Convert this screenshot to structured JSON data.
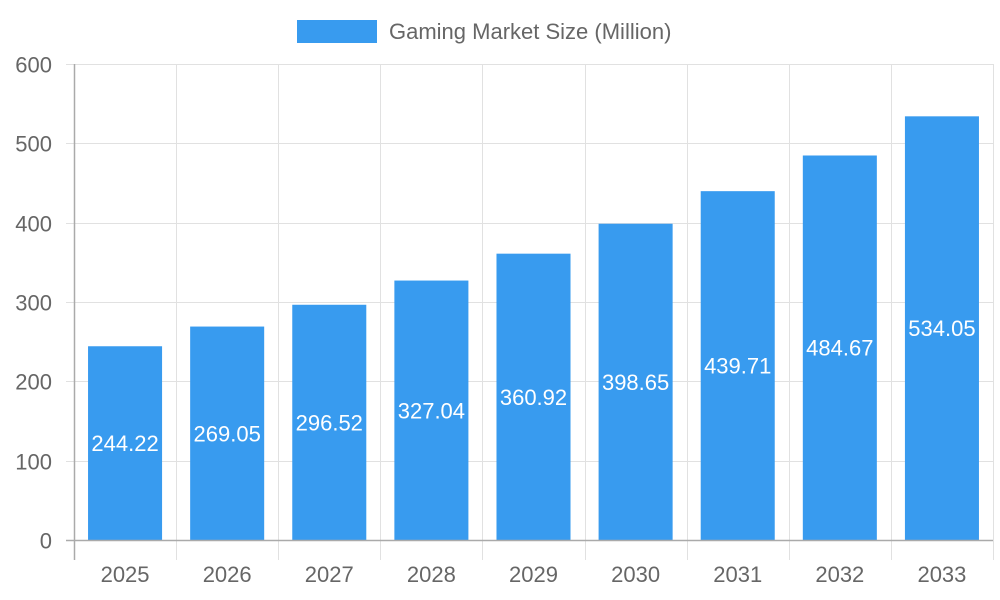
{
  "chart_data": {
    "type": "bar",
    "title": "",
    "categories": [
      "2025",
      "2026",
      "2027",
      "2028",
      "2029",
      "2030",
      "2031",
      "2032",
      "2033"
    ],
    "series": [
      {
        "name": "Gaming Market Size (Million)",
        "color": "#389bef",
        "values": [
          244.22,
          269.05,
          296.52,
          327.04,
          360.92,
          398.65,
          439.71,
          484.67,
          534.05
        ]
      }
    ],
    "data_labels": [
      "244.22",
      "269.05",
      "296.52",
      "327.04",
      "360.92",
      "398.65",
      "439.71",
      "484.67",
      "534.05"
    ],
    "xlabel": "",
    "ylabel": "",
    "ylim": [
      0,
      600
    ],
    "yticks": [
      0,
      100,
      200,
      300,
      400,
      500,
      600
    ],
    "grid": true,
    "legend_position": "top"
  },
  "legend": {
    "label": "Gaming Market Size (Million)",
    "swatch_color": "#389bef"
  },
  "colors": {
    "bar": "#389bef",
    "grid": "#e1e1e1",
    "axis": "#aaaaaa",
    "tick_text": "#666666",
    "label_text": "#ffffff"
  }
}
